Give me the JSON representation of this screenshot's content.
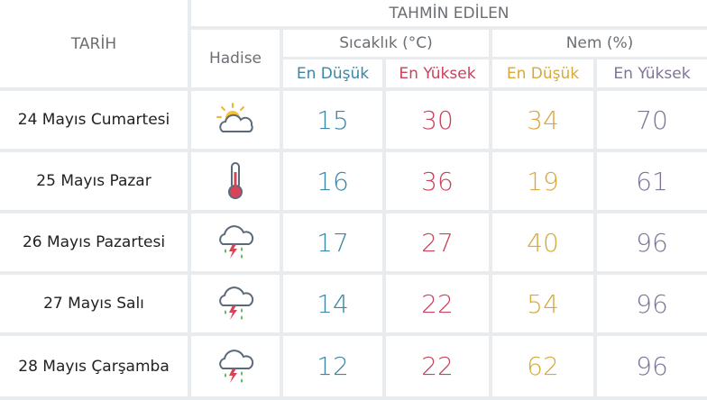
{
  "header": {
    "tarih": "TARİH",
    "tahmin": "TAHMİN EDİLEN",
    "hadise": "Hadise",
    "sicaklik": "Sıcaklık (°C)",
    "nem": "Nem (%)",
    "en_dusuk": "En Düşük",
    "en_yuksek": "En Yüksek"
  },
  "colors": {
    "low_temp": "#3b86a6",
    "high_temp": "#c8435c",
    "low_hum": "#d6a93a",
    "high_hum": "#7f7497"
  },
  "rows": [
    {
      "date": "24 Mayıs Cumartesi",
      "icon": "partly-cloudy-icon",
      "t_low": "15",
      "t_high": "30",
      "h_low": "34",
      "h_high": "70"
    },
    {
      "date": "25 Mayıs Pazar",
      "icon": "thermometer-hot-icon",
      "t_low": "16",
      "t_high": "36",
      "h_low": "19",
      "h_high": "61"
    },
    {
      "date": "26 Mayıs Pazartesi",
      "icon": "thunderstorm-rain-icon",
      "t_low": "17",
      "t_high": "27",
      "h_low": "40",
      "h_high": "96"
    },
    {
      "date": "27 Mayıs Salı",
      "icon": "thunderstorm-rain-icon",
      "t_low": "14",
      "t_high": "22",
      "h_low": "54",
      "h_high": "96"
    },
    {
      "date": "28 Mayıs Çarşamba",
      "icon": "thunderstorm-rain-icon",
      "t_low": "12",
      "t_high": "22",
      "h_low": "62",
      "h_high": "96"
    }
  ]
}
